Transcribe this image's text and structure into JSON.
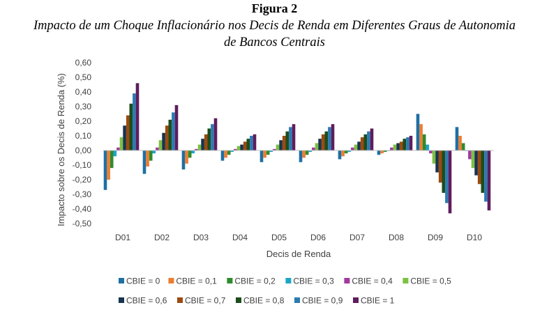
{
  "figure": {
    "label": "Figura 2",
    "title_line1": "Impacto de um Choque Inflacionário nos Decis de Renda em Diferentes Graus de Autonomia",
    "title_line2": "de Bancos Centrais"
  },
  "chart_data": {
    "type": "bar",
    "xlabel": "Decis de Renda",
    "ylabel": "Impacto sobre os Decis de Renda (%)",
    "ylim": [
      -0.5,
      0.6
    ],
    "ytick_step": 0.1,
    "ytick_labels": [
      "0,60",
      "0,50",
      "0,40",
      "0,30",
      "0,20",
      "0,10",
      "0,00",
      "-0,10",
      "-0,20",
      "-0,30",
      "-0,40",
      "-0,50"
    ],
    "grid": false,
    "legend_position": "bottom",
    "categories": [
      "D01",
      "D02",
      "D03",
      "D04",
      "D05",
      "D06",
      "D07",
      "D08",
      "D09",
      "D10"
    ],
    "series": [
      {
        "name": "CBIE = 0",
        "color": "#1f6fa3",
        "values": [
          -0.27,
          -0.16,
          -0.13,
          -0.07,
          -0.08,
          -0.08,
          -0.06,
          -0.03,
          0.25,
          0.16
        ]
      },
      {
        "name": "CBIE = 0,1",
        "color": "#ed7d31",
        "values": [
          -0.2,
          -0.11,
          -0.09,
          -0.05,
          -0.05,
          -0.05,
          -0.04,
          -0.02,
          0.18,
          0.1
        ]
      },
      {
        "name": "CBIE = 0,2",
        "color": "#2e8b2e",
        "values": [
          -0.12,
          -0.07,
          -0.05,
          -0.03,
          -0.03,
          -0.03,
          -0.02,
          -0.01,
          0.11,
          0.05
        ]
      },
      {
        "name": "CBIE = 0,3",
        "color": "#1ca6c6",
        "values": [
          -0.04,
          -0.02,
          -0.02,
          -0.01,
          -0.01,
          -0.01,
          -0.01,
          0.0,
          0.04,
          0.0
        ]
      },
      {
        "name": "CBIE = 0,4",
        "color": "#a03aa0",
        "values": [
          0.02,
          0.02,
          0.01,
          0.01,
          0.01,
          0.02,
          0.02,
          0.02,
          -0.02,
          -0.06
        ]
      },
      {
        "name": "CBIE = 0,5",
        "color": "#7cc142",
        "values": [
          0.09,
          0.07,
          0.04,
          0.03,
          0.04,
          0.05,
          0.04,
          0.04,
          -0.09,
          -0.12
        ]
      },
      {
        "name": "CBIE = 0,6",
        "color": "#17344f",
        "values": [
          0.17,
          0.12,
          0.08,
          0.04,
          0.07,
          0.08,
          0.06,
          0.05,
          -0.15,
          -0.17
        ]
      },
      {
        "name": "CBIE = 0,7",
        "color": "#9c4a10",
        "values": [
          0.24,
          0.17,
          0.11,
          0.06,
          0.1,
          0.11,
          0.09,
          0.06,
          -0.22,
          -0.23
        ]
      },
      {
        "name": "CBIE = 0,8",
        "color": "#1d4d1d",
        "values": [
          0.32,
          0.21,
          0.15,
          0.08,
          0.13,
          0.13,
          0.11,
          0.08,
          -0.29,
          -0.29
        ]
      },
      {
        "name": "CBIE = 0,9",
        "color": "#2b7bb0",
        "values": [
          0.39,
          0.26,
          0.18,
          0.1,
          0.16,
          0.16,
          0.13,
          0.09,
          -0.36,
          -0.35
        ]
      },
      {
        "name": "CBIE = 1",
        "color": "#5e1d5e",
        "values": [
          0.46,
          0.31,
          0.22,
          0.11,
          0.18,
          0.18,
          0.15,
          0.1,
          -0.43,
          -0.41
        ]
      }
    ]
  }
}
